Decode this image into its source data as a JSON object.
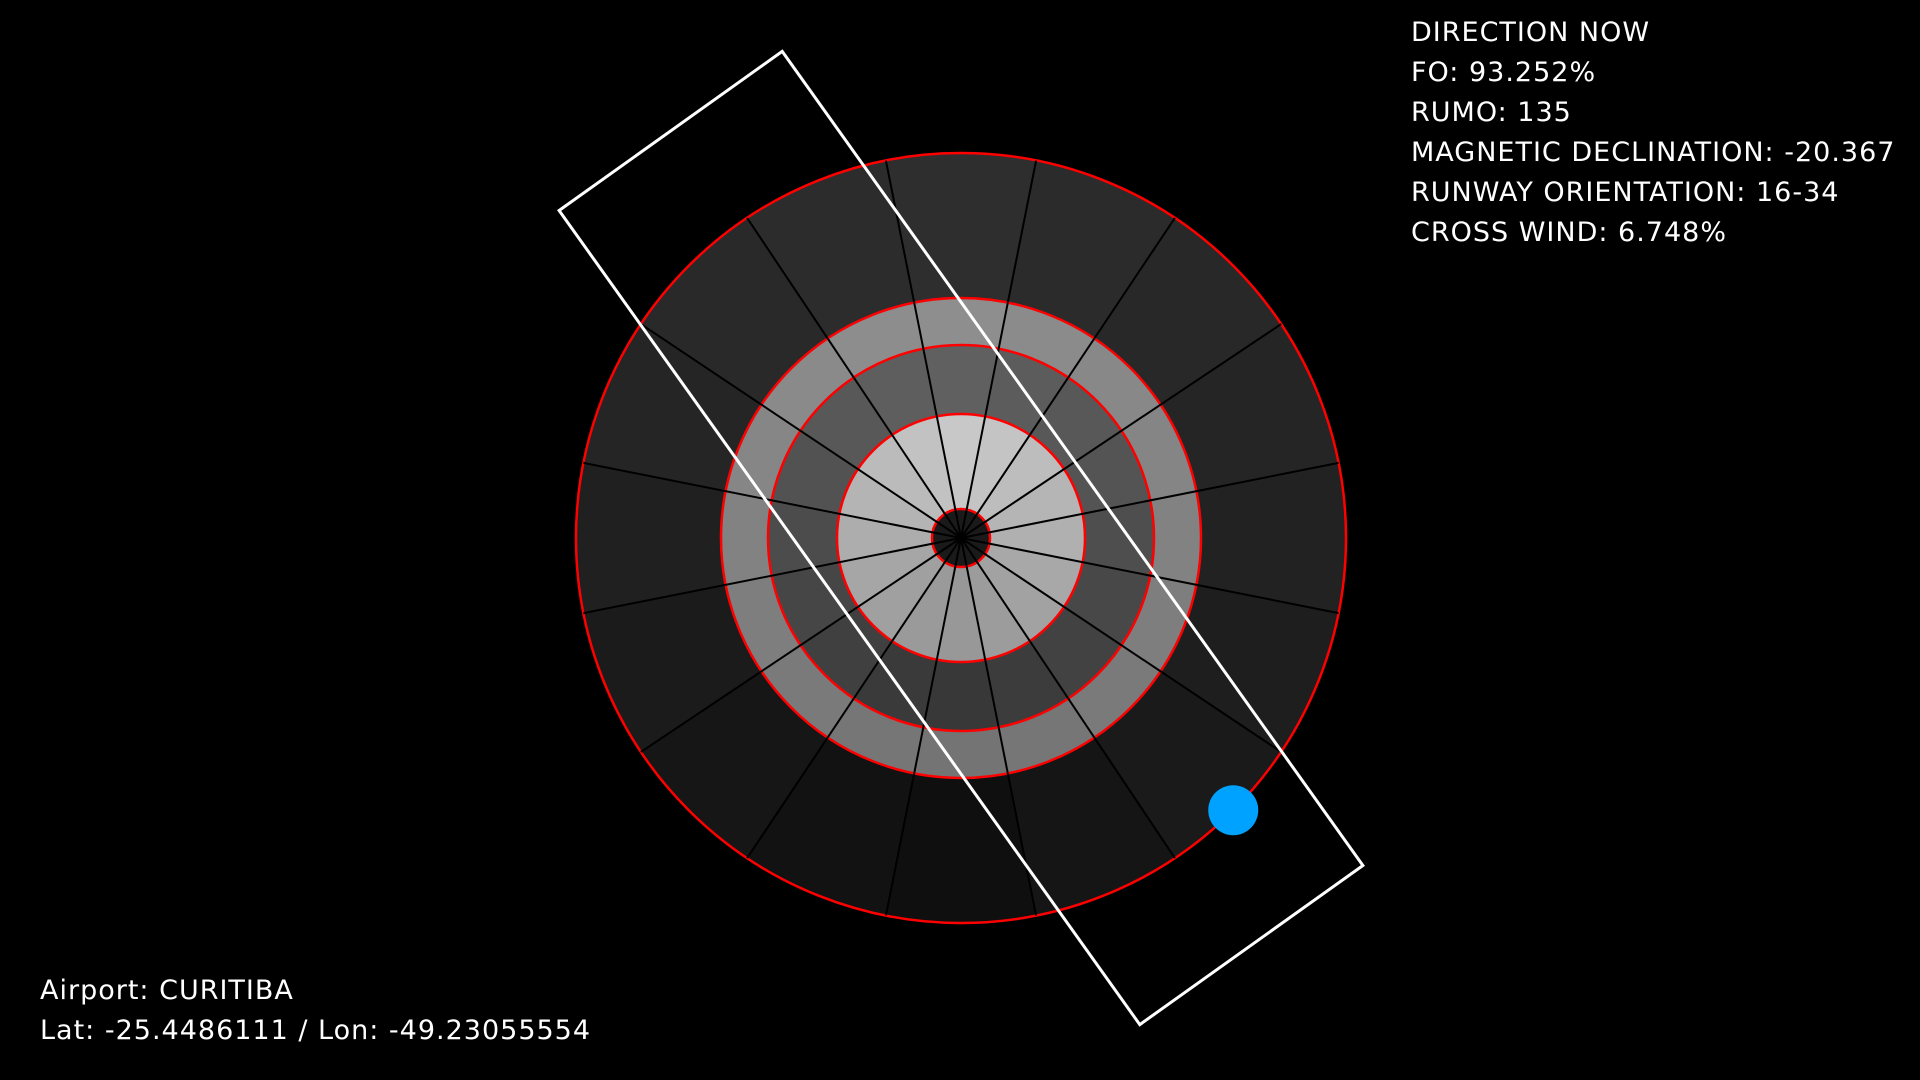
{
  "info": {
    "heading": "DIRECTION NOW",
    "fo": "FO: 93.252%",
    "rumo": "RUMO: 135",
    "declination": "MAGNETIC DECLINATION: -20.367",
    "runway": "RUNWAY ORIENTATION: 16-34",
    "crosswind": "CROSS WIND: 6.748%"
  },
  "airport": {
    "name_line": "Airport: CURITIBA",
    "coords_line": "Lat: -25.4486111 / Lon: -49.23055554"
  },
  "wind_rose": {
    "sectors": 16,
    "wind_direction_deg": 135,
    "runway_heading_deg": 144.5,
    "colors": {
      "ring_border": "#ff0000",
      "spoke": "#000000",
      "runway_outline": "#ffffff",
      "wind_marker": "#00a2ff"
    }
  }
}
